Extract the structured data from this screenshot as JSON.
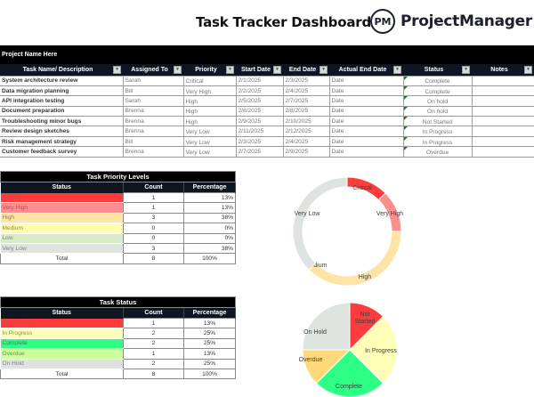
{
  "header": {
    "title": "Task Tracker Dashboard",
    "logo_mark": "PM",
    "logo_text": "ProjectManager"
  },
  "project": {
    "name": "Project Name Here"
  },
  "task_table": {
    "columns": [
      "Task Name/ Description",
      "Assigned To",
      "Priority",
      "Start Date",
      "End Date",
      "Actual End Date",
      "Status",
      "Notes"
    ],
    "filter_icon": "dropdown-arrow-icon",
    "rows": [
      {
        "task": "System architecture review",
        "assigned": "Sarah",
        "priority": "Critical",
        "start": "2/1/2025",
        "end": "2/3/2025",
        "actual": "Date",
        "status": "Complete",
        "notes": ""
      },
      {
        "task": "Data migration planning",
        "assigned": "Bill",
        "priority": "Very High",
        "start": "2/2/2025",
        "end": "2/4/2025",
        "actual": "Date",
        "status": "Complete",
        "notes": ""
      },
      {
        "task": "API integration testing",
        "assigned": "Sarah",
        "priority": "High",
        "start": "2/5/2025",
        "end": "2/7/2025",
        "actual": "Date",
        "status": "On hold",
        "notes": ""
      },
      {
        "task": "Document preparation",
        "assigned": "Brenna",
        "priority": "High",
        "start": "2/6/2025",
        "end": "2/8/2025",
        "actual": "Date",
        "status": "On hold",
        "notes": ""
      },
      {
        "task": "Troubleshooting minor bugs",
        "assigned": "Brenna",
        "priority": "High",
        "start": "2/9/2025",
        "end": "2/10/2025",
        "actual": "Date",
        "status": "Not Started",
        "notes": ""
      },
      {
        "task": "Review design sketches",
        "assigned": "Brenna",
        "priority": "Very Low",
        "start": "2/11/2025",
        "end": "2/12/2025",
        "actual": "Date",
        "status": "In Progress",
        "notes": ""
      },
      {
        "task": "Risk management strategy",
        "assigned": "Bill",
        "priority": "Very Low",
        "start": "2/3/2025",
        "end": "2/4/2025",
        "actual": "Date",
        "status": "In Progress",
        "notes": ""
      },
      {
        "task": "Customer feedback survey",
        "assigned": "Brenna",
        "priority": "Very Low",
        "start": "2/7/2025",
        "end": "2/9/2025",
        "actual": "Date",
        "status": "Overdue",
        "notes": ""
      }
    ]
  },
  "priority_table": {
    "title": "Task Priority Levels",
    "columns": [
      "Status",
      "Count",
      "Percentage"
    ],
    "rows": [
      {
        "label": "Critical",
        "count": "1",
        "pct": "13%",
        "color": "#ff3b3b",
        "text_color": "#c0504d"
      },
      {
        "label": "Very High",
        "count": "1",
        "pct": "13%",
        "color": "#ff8f8f",
        "text_color": "#b05050"
      },
      {
        "label": "High",
        "count": "3",
        "pct": "38%",
        "color": "#ffe4a6",
        "text_color": "#8a7a5a"
      },
      {
        "label": "Medium",
        "count": "0",
        "pct": "0%",
        "color": "#ffffb0",
        "text_color": "#8a8a5a"
      },
      {
        "label": "Low",
        "count": "0",
        "pct": "0%",
        "color": "#d8ecc8",
        "text_color": "#7a8a70"
      },
      {
        "label": "Very Low",
        "count": "3",
        "pct": "38%",
        "color": "#dfe3e0",
        "text_color": "#808080"
      }
    ],
    "total": {
      "label": "Total",
      "count": "8",
      "pct": "100%"
    }
  },
  "status_table": {
    "title": "Task Status",
    "columns": [
      "Status",
      "Count",
      "Percentage"
    ],
    "rows": [
      {
        "label": "Not Started",
        "count": "1",
        "pct": "13%",
        "color": "#ff3b3b",
        "text_color": "#c0504d"
      },
      {
        "label": "In Progress",
        "count": "2",
        "pct": "25%",
        "color": "#ffffb8",
        "text_color": "#8a8a5a"
      },
      {
        "label": "Complete",
        "count": "2",
        "pct": "25%",
        "color": "#2eff85",
        "text_color": "#4a7a5a"
      },
      {
        "label": "Overdue",
        "count": "1",
        "pct": "13%",
        "color": "#ccff99",
        "text_color": "#708a60"
      },
      {
        "label": "On Hold",
        "count": "2",
        "pct": "25%",
        "color": "#dfe3e0",
        "text_color": "#808080"
      }
    ],
    "total": {
      "label": "Total",
      "count": "8",
      "pct": "100%"
    }
  },
  "chart_data": [
    {
      "type": "pie",
      "variant": "donut",
      "title": "",
      "categories": [
        "Critical",
        "Very High",
        "High",
        "Medium",
        "Low",
        "Very Low"
      ],
      "values": [
        1,
        1,
        3,
        0,
        0,
        3
      ],
      "colors": [
        "#ff3b3b",
        "#ff8f8f",
        "#ffe4a6",
        "#ffffb0",
        "#d8ecc8",
        "#dfe3e0"
      ],
      "legend": "none",
      "data_labels": "category"
    },
    {
      "type": "pie",
      "title": "",
      "categories": [
        "Not Started",
        "In Progress",
        "Complete",
        "Overdue",
        "On Hold"
      ],
      "values": [
        1,
        2,
        2,
        1,
        2
      ],
      "colors": [
        "#ff3b3b",
        "#ffffb8",
        "#2eff85",
        "#ffd97a",
        "#dfe3e0"
      ],
      "legend": "none",
      "data_labels": "category"
    }
  ]
}
